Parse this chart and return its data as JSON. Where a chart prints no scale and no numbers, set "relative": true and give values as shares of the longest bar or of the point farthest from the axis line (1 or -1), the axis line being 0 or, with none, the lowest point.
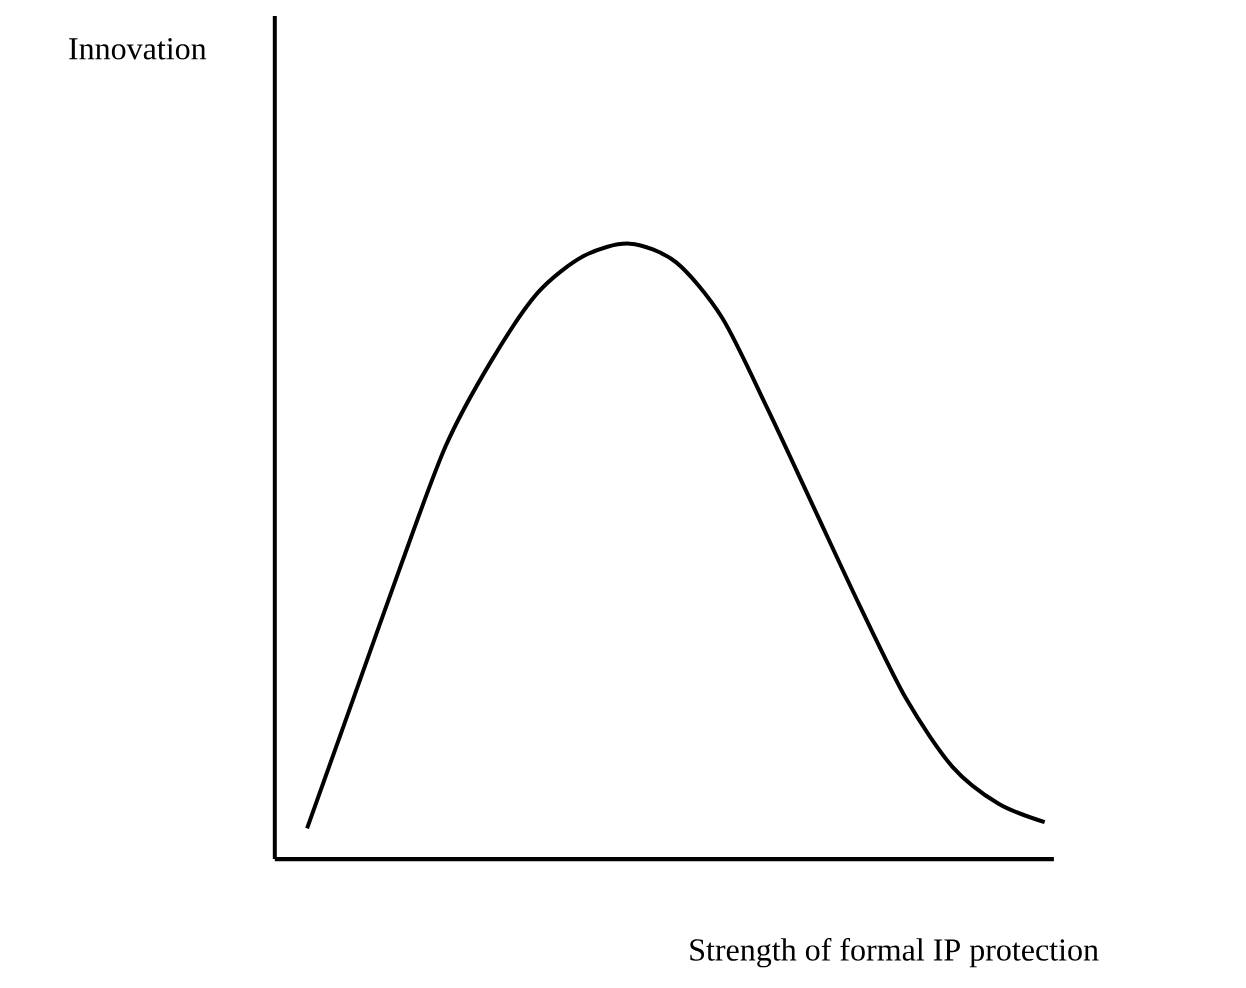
{
  "chart_data": {
    "type": "line",
    "relative": true,
    "xlabel": "Strength of formal IP protection",
    "annotations": [
      "Innovation"
    ],
    "categories": [
      null,
      null,
      null,
      null,
      null,
      null,
      null,
      null,
      null,
      null,
      null,
      null,
      null,
      null,
      null,
      null,
      null
    ],
    "series": [
      {
        "color": "#000000",
        "values": [
          0.05,
          0.26,
          0.47,
          0.67,
          0.81,
          0.92,
          0.98,
          1,
          0.97,
          0.88,
          0.73,
          0.57,
          0.41,
          0.26,
          0.15,
          0.09,
          0.06
        ]
      }
    ]
  }
}
